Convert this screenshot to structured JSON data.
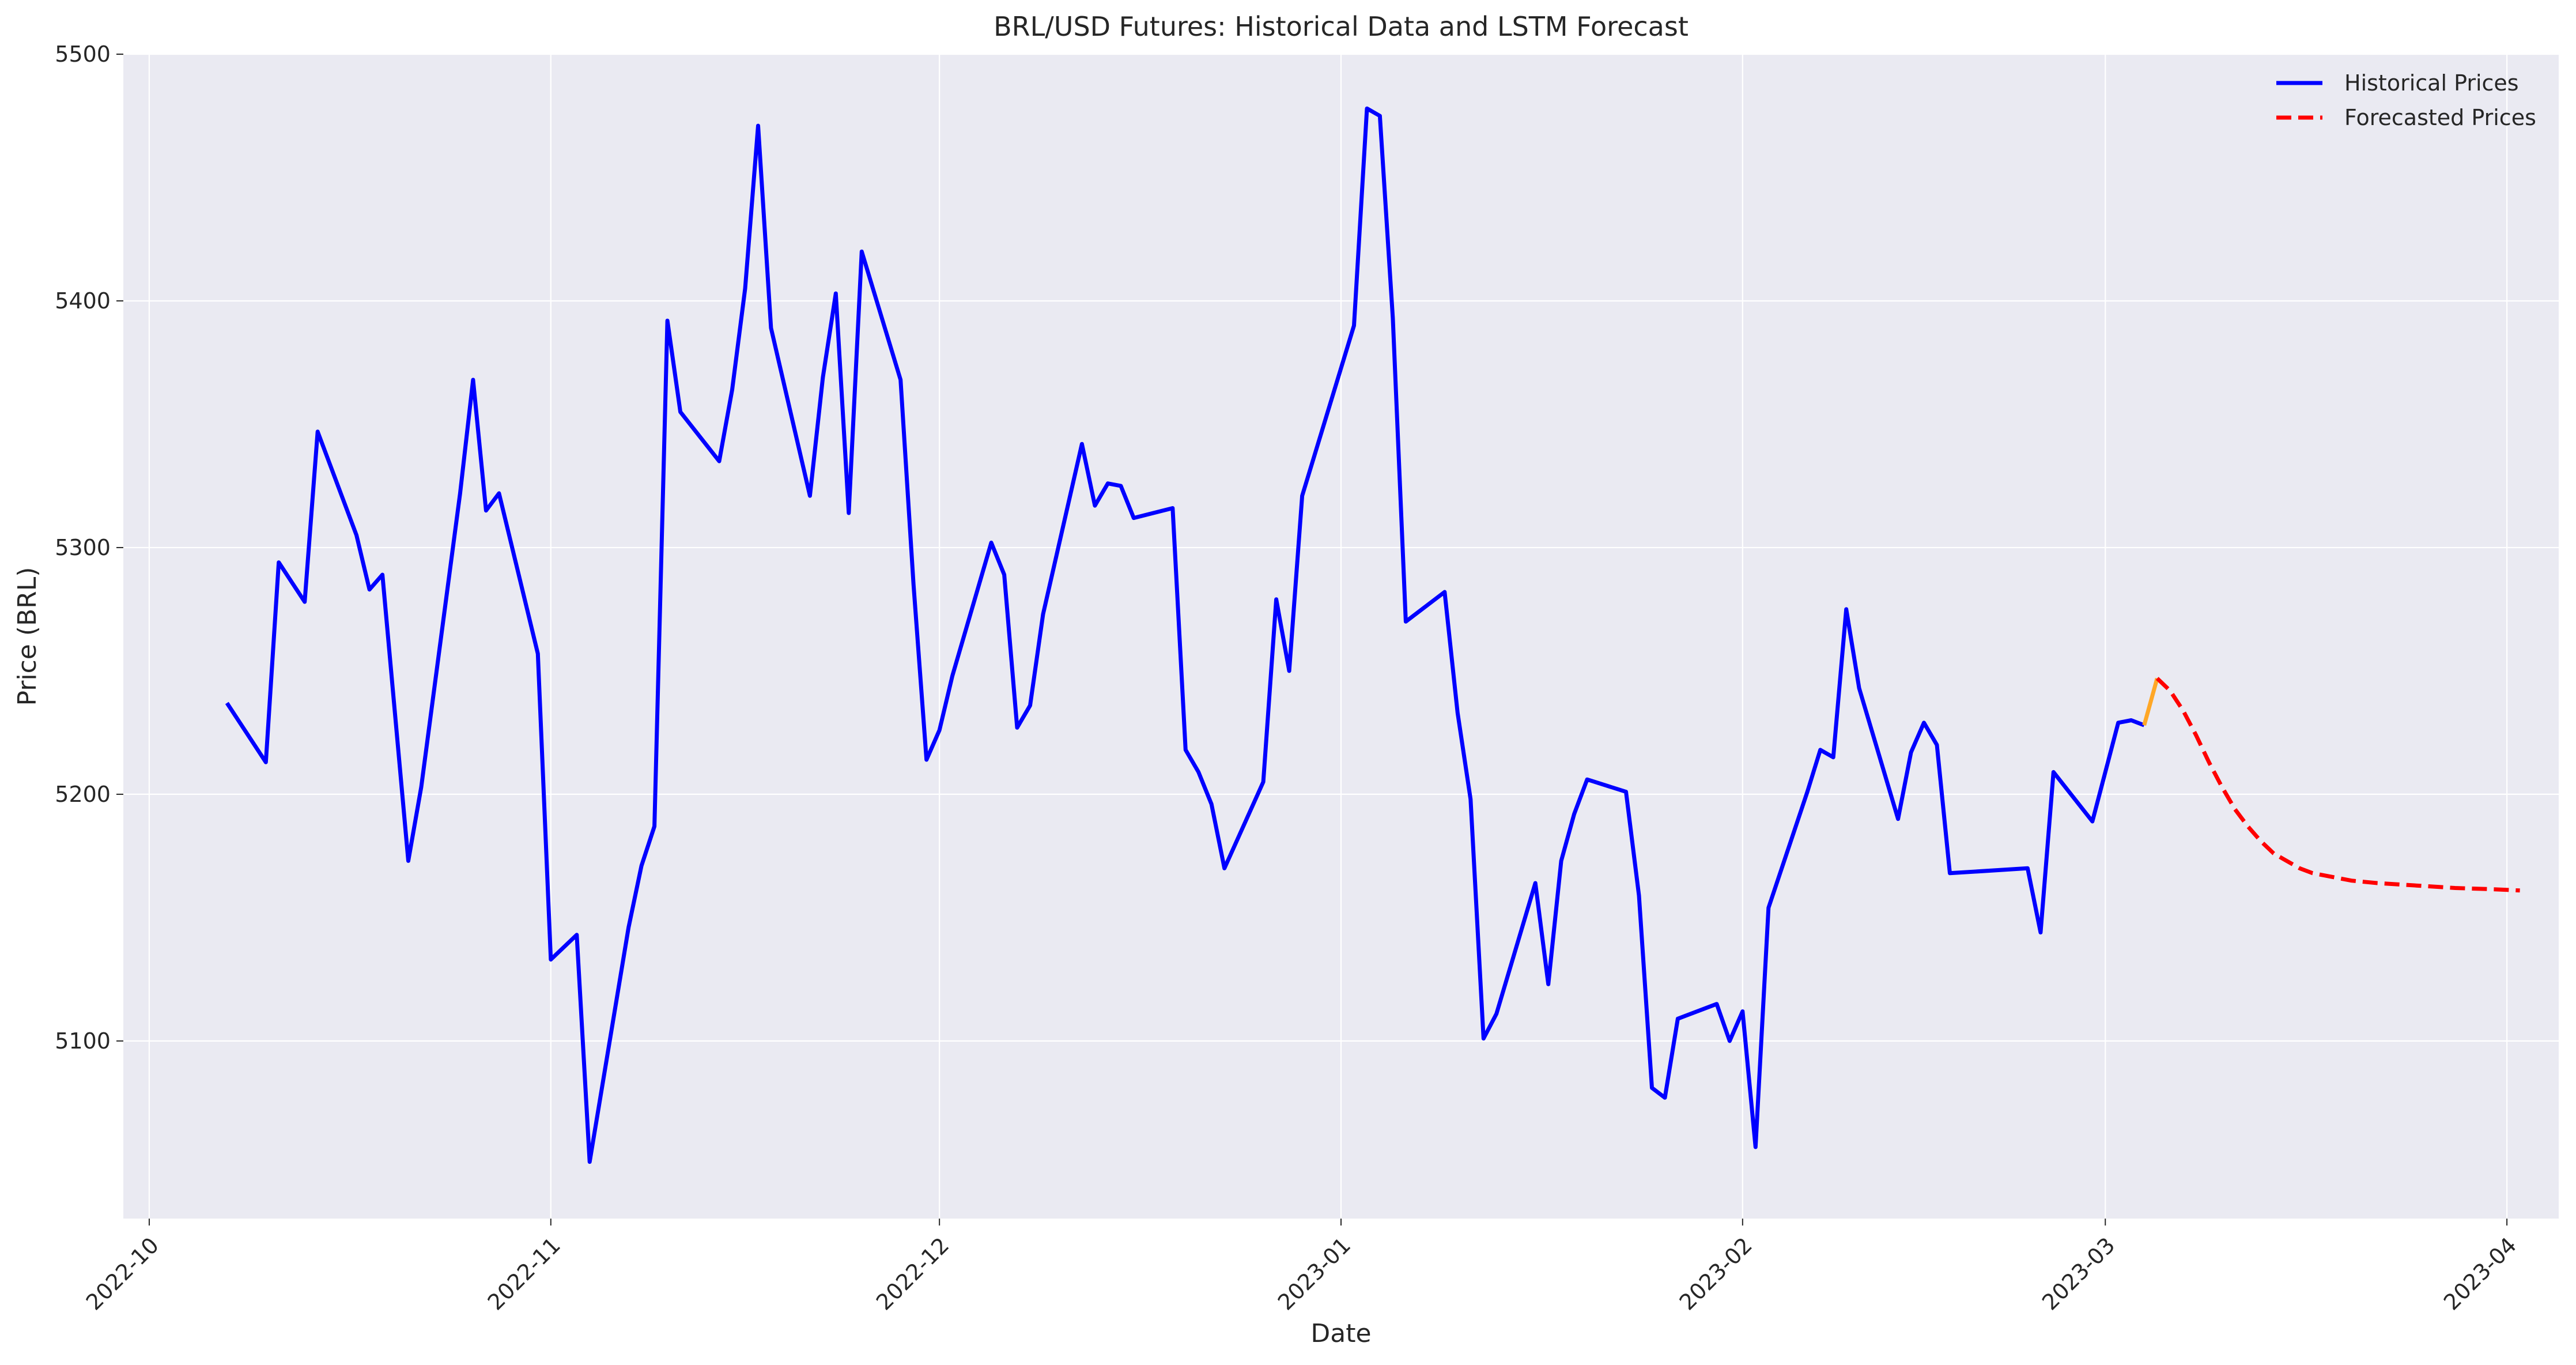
{
  "chart_data": {
    "type": "line",
    "title": "BRL/USD Futures: Historical Data and LSTM Forecast",
    "xlabel": "Date",
    "ylabel": "Price (BRL)",
    "x_type": "date",
    "xlim": [
      "2022-09-29",
      "2023-04-05"
    ],
    "ylim": [
      5028,
      5500
    ],
    "x_ticks": [
      "2022-10-01",
      "2022-11-01",
      "2022-12-01",
      "2023-01-01",
      "2023-02-01",
      "2023-03-01",
      "2023-04-01"
    ],
    "x_tick_labels": [
      "2022-10",
      "2022-11",
      "2022-12",
      "2023-01",
      "2023-02",
      "2023-03",
      "2023-04"
    ],
    "y_ticks": [
      5100,
      5200,
      5300,
      5400,
      5500
    ],
    "y_tick_labels": [
      "5100",
      "5200",
      "5300",
      "5400",
      "5500"
    ],
    "grid": true,
    "legend": "top-right",
    "series": [
      {
        "name": "Historical Prices",
        "color": "#0000ff",
        "style": "solid",
        "points": [
          [
            "2022-10-07",
            5237
          ],
          [
            "2022-10-10",
            5213
          ],
          [
            "2022-10-11",
            5294
          ],
          [
            "2022-10-13",
            5278
          ],
          [
            "2022-10-14",
            5347
          ],
          [
            "2022-10-17",
            5305
          ],
          [
            "2022-10-18",
            5283
          ],
          [
            "2022-10-19",
            5289
          ],
          [
            "2022-10-21",
            5173
          ],
          [
            "2022-10-22",
            5203
          ],
          [
            "2022-10-25",
            5322
          ],
          [
            "2022-10-26",
            5368
          ],
          [
            "2022-10-27",
            5315
          ],
          [
            "2022-10-28",
            5322
          ],
          [
            "2022-10-31",
            5257
          ],
          [
            "2022-11-01",
            5133
          ],
          [
            "2022-11-03",
            5143
          ],
          [
            "2022-11-04",
            5051
          ],
          [
            "2022-11-07",
            5146
          ],
          [
            "2022-11-08",
            5171
          ],
          [
            "2022-11-09",
            5187
          ],
          [
            "2022-11-10",
            5392
          ],
          [
            "2022-11-11",
            5355
          ],
          [
            "2022-11-14",
            5335
          ],
          [
            "2022-11-15",
            5364
          ],
          [
            "2022-11-16",
            5405
          ],
          [
            "2022-11-17",
            5471
          ],
          [
            "2022-11-18",
            5389
          ],
          [
            "2022-11-21",
            5321
          ],
          [
            "2022-11-22",
            5369
          ],
          [
            "2022-11-23",
            5403
          ],
          [
            "2022-11-24",
            5314
          ],
          [
            "2022-11-25",
            5420
          ],
          [
            "2022-11-28",
            5368
          ],
          [
            "2022-11-29",
            5285
          ],
          [
            "2022-11-30",
            5214
          ],
          [
            "2022-12-01",
            5226
          ],
          [
            "2022-12-02",
            5248
          ],
          [
            "2022-12-05",
            5302
          ],
          [
            "2022-12-06",
            5289
          ],
          [
            "2022-12-07",
            5227
          ],
          [
            "2022-12-08",
            5236
          ],
          [
            "2022-12-09",
            5273
          ],
          [
            "2022-12-12",
            5342
          ],
          [
            "2022-12-13",
            5317
          ],
          [
            "2022-12-14",
            5326
          ],
          [
            "2022-12-15",
            5325
          ],
          [
            "2022-12-16",
            5312
          ],
          [
            "2022-12-19",
            5316
          ],
          [
            "2022-12-20",
            5218
          ],
          [
            "2022-12-21",
            5209
          ],
          [
            "2022-12-22",
            5196
          ],
          [
            "2022-12-23",
            5170
          ],
          [
            "2022-12-26",
            5205
          ],
          [
            "2022-12-27",
            5279
          ],
          [
            "2022-12-28",
            5250
          ],
          [
            "2022-12-29",
            5321
          ],
          [
            "2023-01-02",
            5390
          ],
          [
            "2023-01-03",
            5478
          ],
          [
            "2023-01-04",
            5475
          ],
          [
            "2023-01-05",
            5393
          ],
          [
            "2023-01-06",
            5270
          ],
          [
            "2023-01-09",
            5282
          ],
          [
            "2023-01-10",
            5233
          ],
          [
            "2023-01-11",
            5198
          ],
          [
            "2023-01-12",
            5101
          ],
          [
            "2023-01-13",
            5111
          ],
          [
            "2023-01-16",
            5164
          ],
          [
            "2023-01-17",
            5123
          ],
          [
            "2023-01-18",
            5173
          ],
          [
            "2023-01-19",
            5192
          ],
          [
            "2023-01-20",
            5206
          ],
          [
            "2023-01-23",
            5201
          ],
          [
            "2023-01-24",
            5159
          ],
          [
            "2023-01-25",
            5081
          ],
          [
            "2023-01-26",
            5077
          ],
          [
            "2023-01-27",
            5109
          ],
          [
            "2023-01-30",
            5115
          ],
          [
            "2023-01-31",
            5100
          ],
          [
            "2023-02-01",
            5112
          ],
          [
            "2023-02-02",
            5057
          ],
          [
            "2023-02-03",
            5154
          ],
          [
            "2023-02-06",
            5201
          ],
          [
            "2023-02-07",
            5218
          ],
          [
            "2023-02-08",
            5215
          ],
          [
            "2023-02-09",
            5275
          ],
          [
            "2023-02-10",
            5243
          ],
          [
            "2023-02-13",
            5190
          ],
          [
            "2023-02-14",
            5217
          ],
          [
            "2023-02-15",
            5229
          ],
          [
            "2023-02-16",
            5220
          ],
          [
            "2023-02-17",
            5168
          ],
          [
            "2023-02-23",
            5170
          ],
          [
            "2023-02-24",
            5144
          ],
          [
            "2023-02-25",
            5209
          ],
          [
            "2023-02-28",
            5189
          ],
          [
            "2023-03-02",
            5229
          ],
          [
            "2023-03-03",
            5230
          ],
          [
            "2023-03-04",
            5228
          ]
        ]
      },
      {
        "name": "Forecasted Prices",
        "color": "#ff0000",
        "style": "dashed",
        "points": [
          [
            "2023-03-05",
            5247
          ],
          [
            "2023-03-06",
            5242
          ],
          [
            "2023-03-07",
            5234
          ],
          [
            "2023-03-08",
            5224
          ],
          [
            "2023-03-09",
            5213
          ],
          [
            "2023-03-10",
            5203
          ],
          [
            "2023-03-11",
            5194
          ],
          [
            "2023-03-12",
            5187
          ],
          [
            "2023-03-13",
            5181
          ],
          [
            "2023-03-14",
            5176
          ],
          [
            "2023-03-15",
            5173
          ],
          [
            "2023-03-16",
            5170
          ],
          [
            "2023-03-17",
            5168
          ],
          [
            "2023-03-18",
            5167
          ],
          [
            "2023-03-20",
            5165
          ],
          [
            "2023-03-22",
            5164
          ],
          [
            "2023-03-25",
            5163
          ],
          [
            "2023-03-28",
            5162
          ],
          [
            "2023-03-31",
            5161.5
          ],
          [
            "2023-04-02",
            5161
          ]
        ]
      }
    ],
    "connector": {
      "color": "#ffa726",
      "points": [
        [
          "2023-03-04",
          5228
        ],
        [
          "2023-03-05",
          5247
        ]
      ]
    }
  }
}
